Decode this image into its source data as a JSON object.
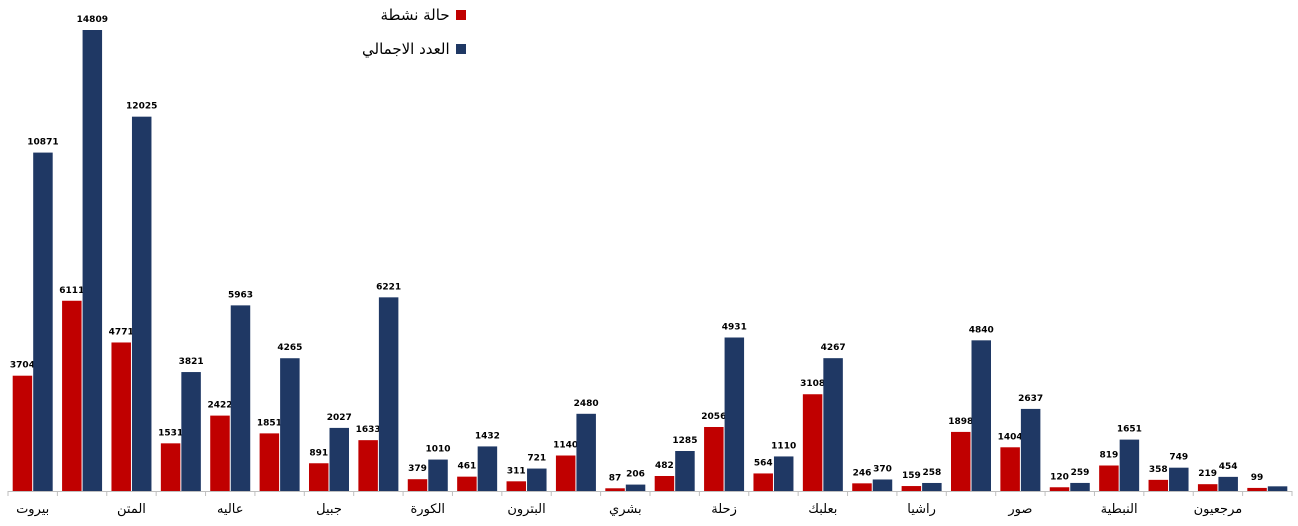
{
  "chart_data": {
    "type": "bar",
    "categories": [
      "بيروت",
      "",
      "المتن",
      "",
      "عاليه",
      "",
      "جبيل",
      "",
      "الكورة",
      "",
      "البترون",
      "",
      "بشري",
      "",
      "زحلة",
      "",
      "بعلبك",
      "",
      "راشيا",
      "",
      "صور",
      "",
      "النبطية",
      "",
      "مرجعيون",
      ""
    ],
    "series": [
      {
        "name": "حالة نشطة",
        "color": "#c00000",
        "values": [
          3704,
          6111,
          4771,
          1531,
          2422,
          1851,
          891,
          1633,
          379,
          461,
          311,
          1140,
          87,
          482,
          2056,
          564,
          3108,
          246,
          159,
          1898,
          1404,
          120,
          819,
          358,
          219,
          99
        ]
      },
      {
        "name": "العدد الاجمالي",
        "color": "#1f3864",
        "values": [
          10871,
          14809,
          12025,
          3821,
          5963,
          4265,
          2027,
          6221,
          1010,
          1432,
          721,
          2480,
          206,
          1285,
          4931,
          1110,
          4267,
          370,
          258,
          4840,
          2637,
          259,
          1651,
          749,
          454,
          150
        ]
      }
    ],
    "data_labels": {
      "series_0": [
        "3704",
        "6111",
        "4771",
        "1531",
        "2422",
        "1851",
        "891",
        "1633",
        "379",
        "461",
        "311",
        "1140",
        "87",
        "482",
        "2056",
        "564",
        "3108",
        "246",
        "159",
        "1898",
        "1404",
        "120",
        "819",
        "358",
        "219",
        "99"
      ],
      "series_1": [
        "10871",
        "14809",
        "12025",
        "3821",
        "5963",
        "4265",
        "2027",
        "6221",
        "1010",
        "1432",
        "721",
        "2480",
        "206",
        "1285",
        "4931",
        "1110",
        "4267",
        "370",
        "258",
        "4840",
        "2637",
        "259",
        "1651",
        "749",
        "454",
        ""
      ]
    },
    "ylim": [
      0,
      14809
    ],
    "grid": false,
    "legend": {
      "position": "top-center",
      "entries": [
        "حالة نشطة",
        "العدد الاجمالي"
      ]
    },
    "title": "",
    "xlabel": "",
    "ylabel": ""
  }
}
